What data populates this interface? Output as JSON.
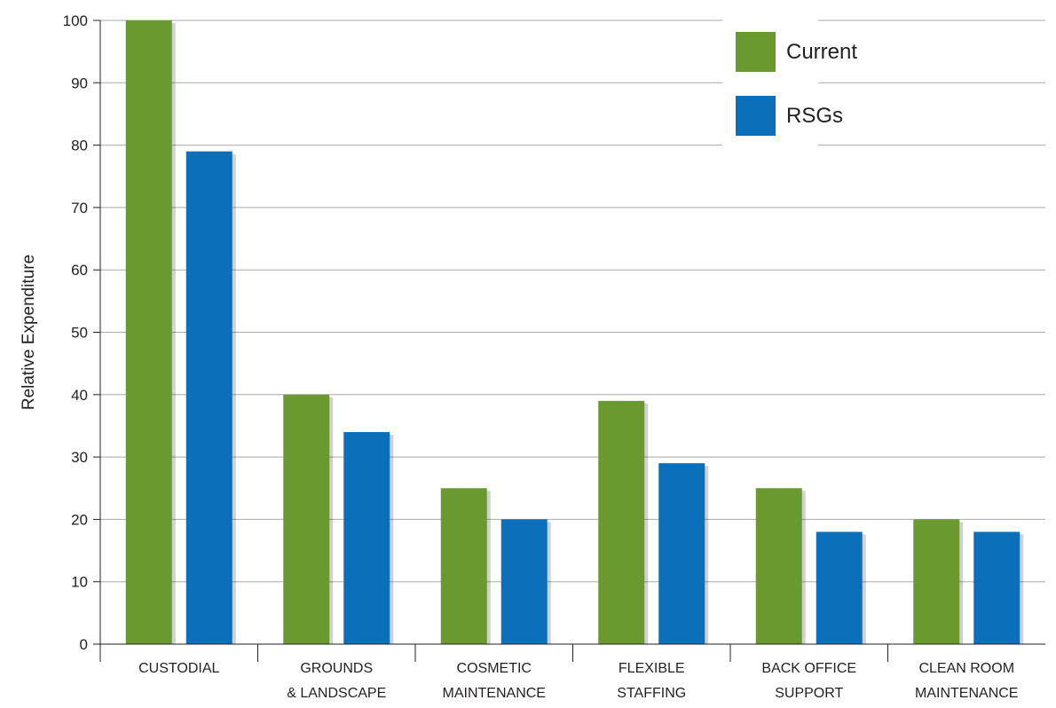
{
  "chart_data": {
    "type": "bar",
    "title": "",
    "xlabel": "",
    "ylabel": "Relative Expenditure",
    "ylim": [
      0,
      100
    ],
    "yticks": [
      0,
      10,
      20,
      30,
      40,
      50,
      60,
      70,
      80,
      90,
      100
    ],
    "grid": true,
    "legend_position": "top-right",
    "categories": [
      [
        "CUSTODIAL"
      ],
      [
        "GROUNDS",
        "& LANDSCAPE"
      ],
      [
        "COSMETIC",
        "MAINTENANCE"
      ],
      [
        "FLEXIBLE",
        "STAFFING"
      ],
      [
        "BACK OFFICE",
        "SUPPORT"
      ],
      [
        "CLEAN ROOM",
        "MAINTENANCE"
      ]
    ],
    "series": [
      {
        "name": "Current",
        "color": "#6a9a2f",
        "values": [
          100,
          40,
          25,
          39,
          25,
          20
        ]
      },
      {
        "name": "RSGs",
        "color": "#0b70b9",
        "values": [
          79,
          34,
          20,
          29,
          18,
          18
        ]
      }
    ]
  }
}
